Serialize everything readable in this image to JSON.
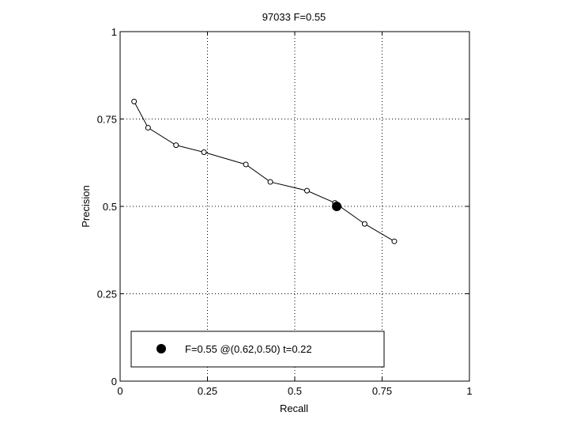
{
  "chart_data": {
    "type": "line",
    "title": "97033 F=0.55",
    "xlabel": "Recall",
    "ylabel": "Precision",
    "xlim": [
      0,
      1
    ],
    "ylim": [
      0,
      1
    ],
    "grid": true,
    "xticks": [
      0,
      0.25,
      0.5,
      0.75,
      1
    ],
    "yticks": [
      0,
      0.25,
      0.5,
      0.75,
      1
    ],
    "xtick_labels": [
      "0",
      "0.25",
      "0.5",
      "0.75",
      "1"
    ],
    "ytick_labels": [
      "0",
      "0.25",
      "0.5",
      "0.75",
      "1"
    ],
    "series": [
      {
        "marker": "open-circle",
        "color": "#000000",
        "x": [
          0.04,
          0.08,
          0.16,
          0.24,
          0.36,
          0.43,
          0.535,
          0.615,
          0.7,
          0.785
        ],
        "y": [
          0.8,
          0.725,
          0.675,
          0.655,
          0.62,
          0.57,
          0.545,
          0.51,
          0.45,
          0.4
        ]
      }
    ],
    "highlight": {
      "x": 0.62,
      "y": 0.5,
      "marker": "filled-circle",
      "color": "#000000"
    },
    "legend": {
      "position": "bottom-left",
      "text": "F=0.55 @(0.62,0.50) t=0.22"
    }
  }
}
